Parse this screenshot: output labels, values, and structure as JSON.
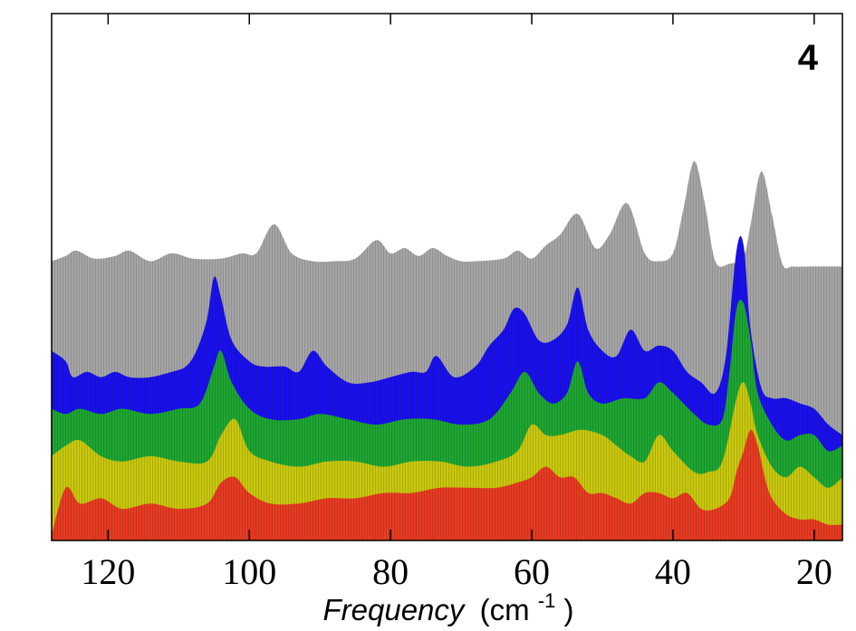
{
  "chart_data": {
    "type": "area",
    "title": "",
    "panel_label": "4",
    "xlabel": {
      "name": "Frequency",
      "unit_prefix": "(cm",
      "unit_exp": "-1",
      "unit_suffix": ")"
    },
    "ylabel": "",
    "xlim": [
      128,
      16
    ],
    "ylim": [
      0,
      1
    ],
    "x_ticks": [
      120,
      100,
      80,
      60,
      40,
      20
    ],
    "x_tick_labels": [
      "120",
      "100",
      "80",
      "60",
      "40",
      "20"
    ],
    "series": [
      {
        "name": "gray",
        "color": "#a6a6a6",
        "x": [
          128,
          126,
          124.5,
          122,
          119,
          117,
          114,
          111,
          108,
          104,
          101,
          99,
          96.5,
          94,
          91,
          88,
          85,
          82,
          80,
          78,
          76,
          74,
          72,
          70,
          68,
          64,
          62,
          60,
          58,
          56,
          53.5,
          51,
          49,
          46.5,
          44,
          42,
          40,
          38.5,
          37,
          35.5,
          34,
          32,
          30,
          29,
          27.5,
          26,
          24.5,
          23,
          20,
          16
        ],
        "y": [
          0.53,
          0.54,
          0.55,
          0.535,
          0.54,
          0.55,
          0.53,
          0.545,
          0.535,
          0.535,
          0.545,
          0.545,
          0.6,
          0.545,
          0.53,
          0.53,
          0.535,
          0.57,
          0.545,
          0.555,
          0.54,
          0.555,
          0.54,
          0.53,
          0.53,
          0.535,
          0.55,
          0.535,
          0.56,
          0.58,
          0.62,
          0.555,
          0.58,
          0.64,
          0.545,
          0.53,
          0.545,
          0.63,
          0.72,
          0.64,
          0.53,
          0.525,
          0.54,
          0.6,
          0.7,
          0.62,
          0.525,
          0.52,
          0.52,
          0.52
        ]
      },
      {
        "name": "blue",
        "color": "#1a10ee",
        "x": [
          128,
          126,
          125,
          123,
          121,
          119,
          117,
          114,
          111,
          109,
          107.5,
          106,
          105,
          104,
          102.5,
          100,
          98,
          95,
          93,
          91,
          89,
          86,
          83,
          80,
          77,
          75,
          73.5,
          71,
          68,
          66,
          64,
          62.5,
          61,
          59,
          57,
          55,
          53.5,
          52,
          50,
          48,
          46,
          44,
          42,
          40,
          38,
          36,
          34,
          32.5,
          31,
          30,
          29,
          27.5,
          26,
          24,
          22,
          20,
          18,
          16
        ],
        "y": [
          0.36,
          0.34,
          0.31,
          0.32,
          0.31,
          0.32,
          0.31,
          0.31,
          0.32,
          0.33,
          0.36,
          0.42,
          0.5,
          0.46,
          0.38,
          0.34,
          0.33,
          0.33,
          0.32,
          0.36,
          0.33,
          0.3,
          0.3,
          0.31,
          0.32,
          0.32,
          0.35,
          0.31,
          0.33,
          0.37,
          0.4,
          0.44,
          0.43,
          0.38,
          0.38,
          0.41,
          0.48,
          0.4,
          0.36,
          0.35,
          0.4,
          0.36,
          0.37,
          0.36,
          0.32,
          0.3,
          0.28,
          0.35,
          0.55,
          0.56,
          0.4,
          0.29,
          0.27,
          0.27,
          0.26,
          0.25,
          0.22,
          0.2
        ]
      },
      {
        "name": "green",
        "color": "#1ea632",
        "x": [
          128,
          126,
          124,
          121,
          118,
          114,
          110,
          107,
          105,
          104,
          102.5,
          100,
          97,
          93,
          90,
          86,
          82,
          78,
          74,
          70,
          66,
          63,
          61,
          59,
          57,
          55,
          53.5,
          52,
          50,
          47,
          44,
          42,
          40,
          37,
          35,
          33,
          32,
          31,
          30,
          29,
          28,
          26,
          24,
          22,
          20,
          18,
          16
        ],
        "y": [
          0.25,
          0.24,
          0.25,
          0.24,
          0.25,
          0.24,
          0.25,
          0.26,
          0.33,
          0.36,
          0.3,
          0.25,
          0.23,
          0.23,
          0.24,
          0.23,
          0.22,
          0.23,
          0.23,
          0.22,
          0.23,
          0.28,
          0.32,
          0.28,
          0.26,
          0.28,
          0.34,
          0.28,
          0.26,
          0.27,
          0.27,
          0.3,
          0.28,
          0.24,
          0.22,
          0.23,
          0.32,
          0.44,
          0.45,
          0.38,
          0.28,
          0.22,
          0.19,
          0.2,
          0.2,
          0.17,
          0.18
        ]
      },
      {
        "name": "yellow",
        "color": "#c9c80d",
        "x": [
          128,
          126,
          124,
          121,
          118,
          114,
          110,
          106,
          104,
          102,
          100,
          97,
          93,
          89,
          85,
          81,
          77,
          73,
          69,
          65,
          62,
          60,
          58,
          56,
          53,
          50,
          48,
          46,
          44,
          42,
          40,
          37,
          35,
          33,
          31,
          30,
          29,
          28,
          26,
          24,
          22,
          20,
          18,
          16
        ],
        "y": [
          0.16,
          0.18,
          0.19,
          0.16,
          0.15,
          0.16,
          0.15,
          0.15,
          0.2,
          0.23,
          0.17,
          0.15,
          0.14,
          0.15,
          0.15,
          0.14,
          0.15,
          0.15,
          0.14,
          0.15,
          0.17,
          0.22,
          0.2,
          0.2,
          0.21,
          0.2,
          0.18,
          0.16,
          0.15,
          0.2,
          0.17,
          0.13,
          0.13,
          0.15,
          0.27,
          0.3,
          0.26,
          0.2,
          0.14,
          0.12,
          0.14,
          0.12,
          0.1,
          0.12
        ]
      },
      {
        "name": "red",
        "color": "#e83b22",
        "x": [
          128,
          126,
          124,
          121,
          118,
          114,
          110,
          106,
          104,
          102,
          100,
          97,
          93,
          89,
          85,
          81,
          77,
          73,
          69,
          65,
          62,
          60,
          58,
          56,
          54,
          52,
          50,
          48,
          46,
          44,
          42,
          40,
          38,
          36,
          34,
          32,
          31,
          30,
          29,
          28,
          27,
          26,
          24,
          22,
          20,
          18,
          16
        ],
        "y": [
          0.01,
          0.1,
          0.07,
          0.08,
          0.06,
          0.07,
          0.06,
          0.07,
          0.11,
          0.12,
          0.09,
          0.07,
          0.07,
          0.08,
          0.08,
          0.09,
          0.09,
          0.1,
          0.1,
          0.1,
          0.11,
          0.12,
          0.14,
          0.12,
          0.12,
          0.09,
          0.09,
          0.08,
          0.07,
          0.09,
          0.09,
          0.08,
          0.09,
          0.06,
          0.06,
          0.08,
          0.13,
          0.17,
          0.21,
          0.18,
          0.12,
          0.08,
          0.05,
          0.04,
          0.04,
          0.03,
          0.03
        ]
      }
    ]
  }
}
